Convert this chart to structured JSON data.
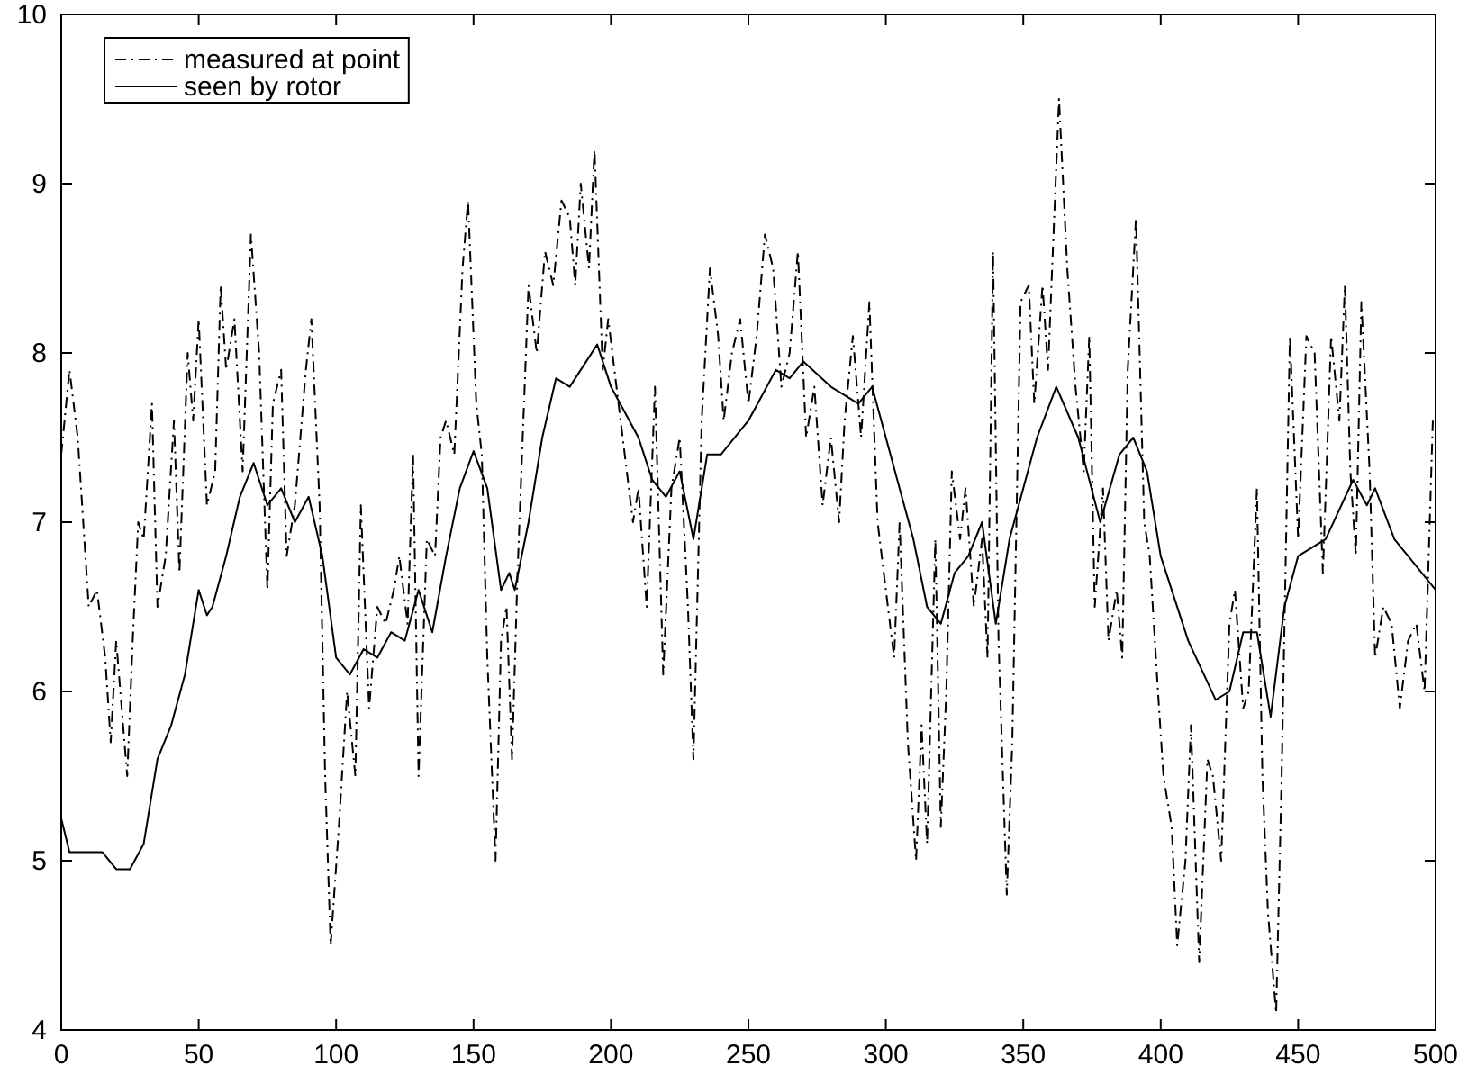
{
  "chart_data": {
    "type": "line",
    "xlim": [
      0,
      500
    ],
    "ylim": [
      4,
      10
    ],
    "xticks": [
      0,
      50,
      100,
      150,
      200,
      250,
      300,
      350,
      400,
      450,
      500
    ],
    "yticks": [
      4,
      5,
      6,
      7,
      8,
      9,
      10
    ],
    "grid": false,
    "legend": "top left",
    "marker": "none",
    "series": [
      {
        "name": "measured at point",
        "color": "#000000",
        "line_style": "dashdot",
        "x": [
          0,
          3,
          6,
          10,
          13,
          16,
          18,
          20,
          22,
          24,
          26,
          28,
          30,
          33,
          35,
          38,
          41,
          43,
          46,
          48,
          50,
          53,
          56,
          58,
          60,
          63,
          66,
          69,
          72,
          75,
          77,
          80,
          82,
          85,
          89,
          91,
          94,
          96,
          98,
          101,
          104,
          107,
          109,
          112,
          115,
          118,
          121,
          123,
          126,
          128,
          130,
          133,
          136,
          138,
          140,
          143,
          146,
          148,
          151,
          153,
          155,
          158,
          160,
          162,
          164,
          166,
          170,
          173,
          176,
          179,
          182,
          185,
          187,
          189,
          192,
          194,
          197,
          199,
          202,
          205,
          208,
          210,
          213,
          216,
          219,
          222,
          225,
          228,
          230,
          233,
          236,
          239,
          241,
          244,
          247,
          250,
          253,
          256,
          259,
          262,
          265,
          268,
          271,
          274,
          277,
          280,
          283,
          285,
          288,
          291,
          294,
          297,
          300,
          303,
          305,
          308,
          311,
          313,
          315,
          318,
          320,
          322,
          324,
          327,
          329,
          332,
          335,
          337,
          339,
          341,
          344,
          346,
          349,
          352,
          354,
          357,
          359,
          363,
          366,
          369,
          372,
          374,
          376,
          379,
          381,
          384,
          386,
          388,
          391,
          394,
          396,
          399,
          401,
          404,
          406,
          409,
          411,
          414,
          417,
          419,
          422,
          425,
          427,
          430,
          432,
          435,
          437,
          439,
          442,
          444,
          447,
          450,
          453,
          456,
          459,
          462,
          465,
          467,
          469,
          471,
          473,
          476,
          478,
          481,
          484,
          487,
          490,
          493,
          496,
          499
        ],
        "values": [
          7.4,
          7.9,
          7.5,
          6.5,
          6.6,
          6.2,
          5.7,
          6.3,
          5.9,
          5.5,
          6.3,
          7.0,
          6.9,
          7.7,
          6.5,
          6.8,
          7.6,
          6.7,
          8.0,
          7.6,
          8.2,
          7.1,
          7.3,
          8.4,
          7.9,
          8.2,
          7.3,
          8.7,
          8.0,
          6.6,
          7.7,
          7.9,
          6.8,
          7.1,
          7.9,
          8.2,
          7.1,
          5.5,
          4.5,
          5.2,
          6.0,
          5.5,
          7.1,
          5.9,
          6.5,
          6.4,
          6.6,
          6.8,
          6.4,
          7.4,
          5.5,
          6.9,
          6.8,
          7.5,
          7.6,
          7.4,
          8.5,
          8.9,
          7.7,
          7.4,
          6.2,
          5.0,
          6.3,
          6.5,
          5.6,
          6.7,
          8.4,
          8.0,
          8.6,
          8.4,
          8.9,
          8.8,
          8.4,
          9.0,
          8.5,
          9.2,
          7.9,
          8.2,
          7.8,
          7.4,
          7.0,
          7.2,
          6.5,
          7.8,
          6.1,
          7.2,
          7.5,
          6.5,
          5.6,
          7.6,
          8.5,
          8.1,
          7.6,
          8.0,
          8.2,
          7.7,
          8.1,
          8.7,
          8.5,
          7.8,
          8.0,
          8.6,
          7.5,
          7.8,
          7.1,
          7.5,
          7.0,
          7.6,
          8.1,
          7.5,
          8.3,
          7.0,
          6.6,
          6.2,
          7.0,
          5.7,
          5.0,
          5.8,
          5.1,
          6.9,
          5.2,
          6.0,
          7.3,
          6.9,
          7.2,
          6.5,
          6.9,
          6.2,
          8.6,
          6.3,
          4.8,
          5.7,
          8.3,
          8.4,
          7.7,
          8.4,
          7.9,
          9.5,
          8.5,
          7.8,
          7.3,
          8.1,
          6.5,
          7.2,
          6.3,
          6.6,
          6.2,
          7.9,
          8.8,
          7.0,
          6.8,
          6.0,
          5.5,
          5.2,
          4.5,
          5.0,
          5.8,
          4.4,
          5.6,
          5.5,
          5.0,
          6.4,
          6.6,
          5.9,
          6.0,
          7.2,
          5.5,
          4.7,
          4.1,
          5.5,
          8.1,
          6.9,
          8.1,
          8.0,
          6.7,
          8.1,
          7.6,
          8.4,
          7.3,
          6.8,
          8.3,
          7.3,
          6.2,
          6.5,
          6.4,
          5.9,
          6.3,
          6.4,
          6.0,
          7.6
        ]
      },
      {
        "name": "seen by rotor",
        "color": "#000000",
        "line_style": "solid",
        "x": [
          0,
          3,
          5,
          15,
          20,
          25,
          30,
          35,
          40,
          45,
          50,
          53,
          55,
          60,
          65,
          70,
          75,
          80,
          85,
          90,
          95,
          100,
          105,
          110,
          115,
          120,
          125,
          130,
          135,
          140,
          145,
          150,
          155,
          160,
          163,
          165,
          170,
          175,
          180,
          185,
          195,
          200,
          210,
          215,
          220,
          225,
          230,
          235,
          240,
          250,
          260,
          265,
          270,
          280,
          290,
          295,
          300,
          305,
          310,
          315,
          320,
          325,
          330,
          335,
          340,
          345,
          355,
          362,
          370,
          378,
          385,
          390,
          395,
          400,
          410,
          420,
          425,
          430,
          435,
          440,
          445,
          450,
          460,
          470,
          475,
          478,
          485,
          490,
          495,
          500
        ],
        "values": [
          5.25,
          5.05,
          5.05,
          5.05,
          4.95,
          4.95,
          5.1,
          5.6,
          5.8,
          6.1,
          6.6,
          6.45,
          6.5,
          6.8,
          7.15,
          7.35,
          7.1,
          7.2,
          7.0,
          7.15,
          6.8,
          6.2,
          6.1,
          6.25,
          6.2,
          6.35,
          6.3,
          6.6,
          6.35,
          6.8,
          7.2,
          7.42,
          7.2,
          6.6,
          6.7,
          6.6,
          7.0,
          7.5,
          7.85,
          7.8,
          8.05,
          7.8,
          7.5,
          7.25,
          7.15,
          7.3,
          6.9,
          7.4,
          7.4,
          7.6,
          7.9,
          7.85,
          7.95,
          7.8,
          7.7,
          7.8,
          7.5,
          7.2,
          6.9,
          6.5,
          6.4,
          6.7,
          6.8,
          7.0,
          6.4,
          6.9,
          7.5,
          7.8,
          7.5,
          7.0,
          7.4,
          7.5,
          7.3,
          6.8,
          6.3,
          5.95,
          6.0,
          6.35,
          6.35,
          5.85,
          6.5,
          6.8,
          6.9,
          7.25,
          7.1,
          7.2,
          6.9,
          6.8,
          6.7,
          6.6
        ]
      }
    ]
  }
}
